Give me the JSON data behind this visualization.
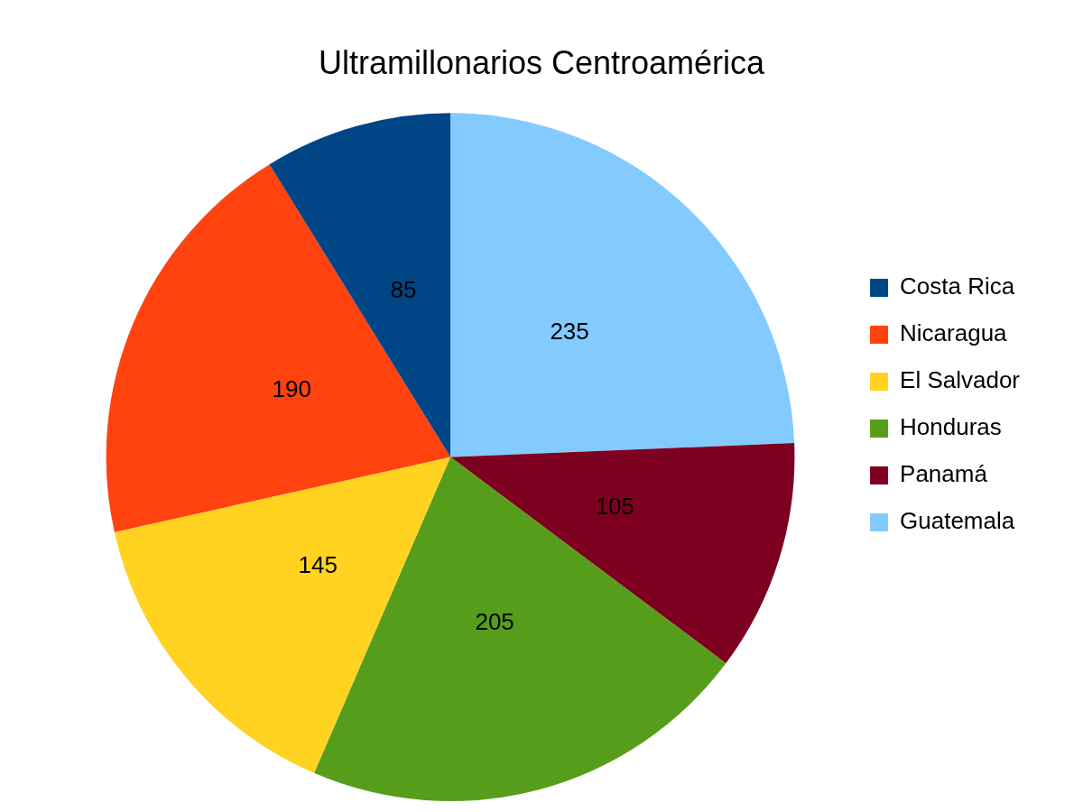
{
  "chart_data": {
    "type": "pie",
    "title": "Ultramillonarios Centroamérica",
    "categories": [
      "Costa Rica",
      "Nicaragua",
      "El Salvador",
      "Honduras",
      "Panamá",
      "Guatemala"
    ],
    "values": [
      85,
      190,
      145,
      205,
      105,
      235
    ],
    "colors": [
      "#004586",
      "#ff420e",
      "#ffd320",
      "#579d1c",
      "#7e0021",
      "#83caff"
    ],
    "data_labels": true,
    "legend": "right"
  }
}
